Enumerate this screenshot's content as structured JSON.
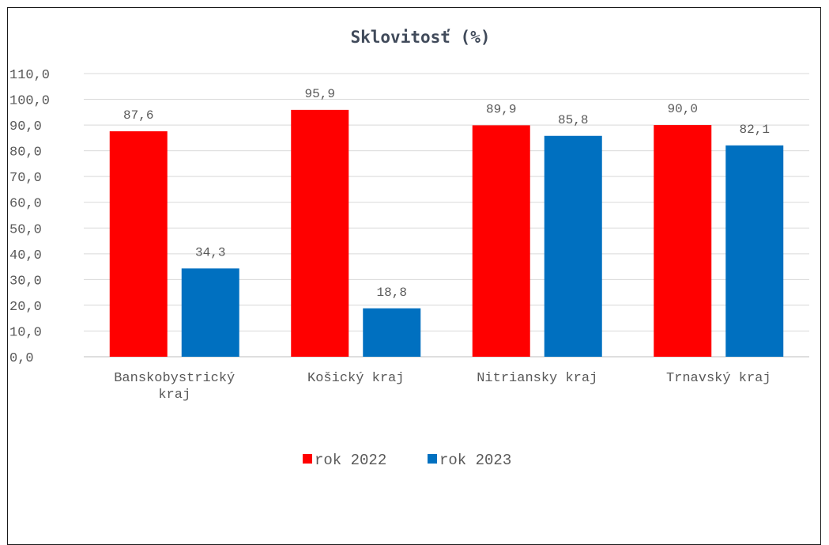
{
  "chart_data": {
    "type": "bar",
    "title": "Sklovitosť (%)",
    "categories": [
      [
        "Banskobystrický",
        "kraj"
      ],
      [
        "Košický kraj"
      ],
      [
        "Nitriansky kraj"
      ],
      [
        "Trnavský kraj"
      ]
    ],
    "series": [
      {
        "name": "rok 2022",
        "color": "#ff0000",
        "values": [
          87.6,
          95.9,
          89.9,
          90.0
        ],
        "labels": [
          "87,6",
          "95,9",
          "89,9",
          "90,0"
        ]
      },
      {
        "name": "rok 2023",
        "color": "#0070c0",
        "values": [
          34.3,
          18.8,
          85.8,
          82.1
        ],
        "labels": [
          "34,3",
          "18,8",
          "85,8",
          "82,1"
        ]
      }
    ],
    "yticks": [
      "0,0",
      "10,0",
      "20,0",
      "30,0",
      "40,0",
      "50,0",
      "60,0",
      "70,0",
      "80,0",
      "90,0",
      "100,0",
      "110,0"
    ],
    "ylim": [
      0,
      110
    ],
    "grid": true,
    "legend_position": "bottom"
  }
}
